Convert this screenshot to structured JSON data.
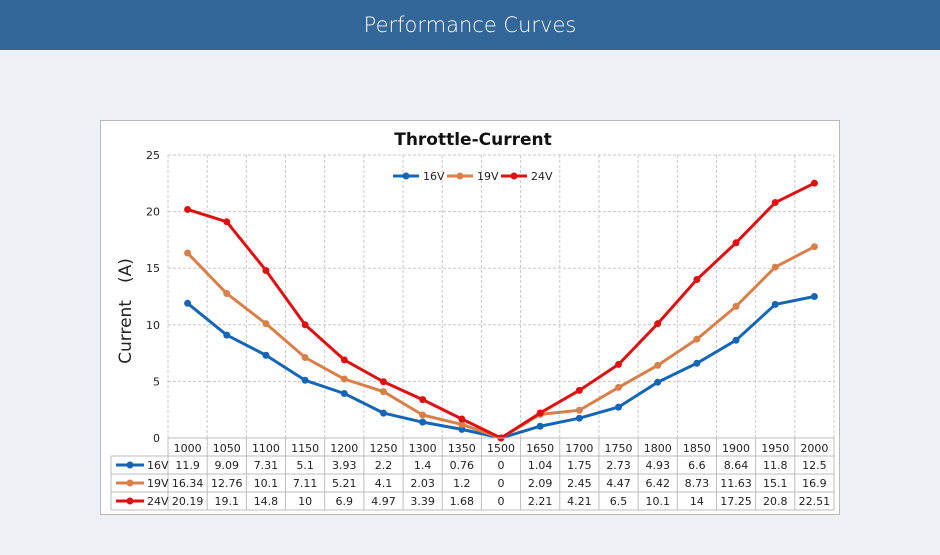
{
  "header": {
    "title": "Performance Curves"
  },
  "chart_data": {
    "type": "line",
    "title": "Throttle-Current",
    "xlabel": "",
    "ylabel": "Current　(A)",
    "ylim": [
      0,
      25
    ],
    "yticks": [
      0,
      5,
      10,
      15,
      20,
      25
    ],
    "grid": true,
    "legend_position": "top-center",
    "categories": [
      "1000",
      "1050",
      "1100",
      "1150",
      "1200",
      "1250",
      "1300",
      "1350",
      "1500",
      "1650",
      "1700",
      "1750",
      "1800",
      "1850",
      "1900",
      "1950",
      "2000"
    ],
    "series": [
      {
        "name": "16V",
        "color": "#1565b5",
        "values": [
          11.9,
          9.09,
          7.31,
          5.1,
          3.93,
          2.2,
          1.4,
          0.76,
          0,
          1.04,
          1.75,
          2.73,
          4.93,
          6.6,
          8.64,
          11.8,
          12.5
        ]
      },
      {
        "name": "19V",
        "color": "#d9804a",
        "values": [
          16.34,
          12.76,
          10.1,
          7.11,
          5.21,
          4.1,
          2.03,
          1.2,
          0,
          2.09,
          2.45,
          4.47,
          6.42,
          8.73,
          11.63,
          15.1,
          16.9
        ]
      },
      {
        "name": "24V",
        "color": "#dd1111",
        "values": [
          20.19,
          19.1,
          14.8,
          10,
          6.9,
          4.97,
          3.39,
          1.68,
          0,
          2.21,
          4.21,
          6.5,
          10.1,
          14,
          17.25,
          20.8,
          22.51
        ]
      }
    ]
  }
}
